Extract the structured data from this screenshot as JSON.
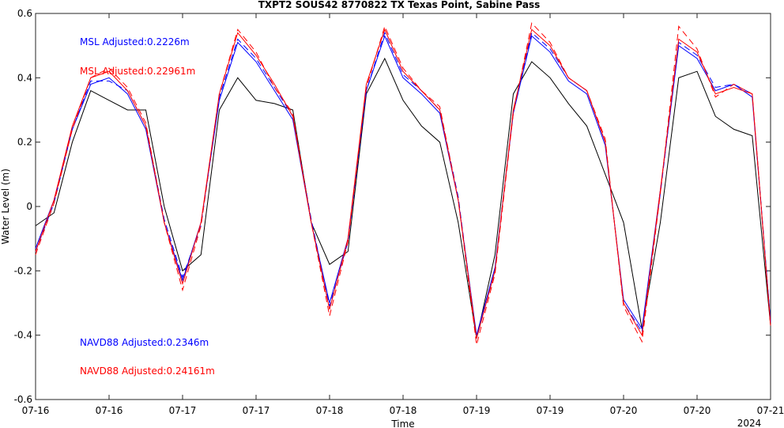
{
  "chart_data": {
    "type": "line",
    "title": "TXPT2 SOUS42 8770822 TX Texas Point, Sabine Pass",
    "xlabel": "Time",
    "ylabel": "Water Level (m)",
    "year_label": "2024",
    "annotations": [
      {
        "text": "MSL Adjusted:0.2226m",
        "color": "#0000ff"
      },
      {
        "text": "MSL Adjusted:0.22961m",
        "color": "#ff0000"
      },
      {
        "text": "NAVD88 Adjusted:0.2346m",
        "color": "#0000ff"
      },
      {
        "text": "NAVD88 Adjusted:0.24161m",
        "color": "#ff0000"
      }
    ],
    "x": [
      0,
      3,
      6,
      9,
      12,
      15,
      18,
      21,
      24,
      27,
      30,
      33,
      36,
      39,
      42,
      45,
      48,
      51,
      54,
      57,
      60,
      63,
      66,
      69,
      72,
      75,
      78,
      81,
      84,
      87,
      90,
      93,
      96,
      99,
      102,
      105,
      108,
      111,
      114,
      117,
      120
    ],
    "xlim": [
      0,
      120
    ],
    "xticks": [
      {
        "value": 0,
        "label": "07-16"
      },
      {
        "value": 12,
        "label": "07-16"
      },
      {
        "value": 24,
        "label": "07-17"
      },
      {
        "value": 36,
        "label": "07-17"
      },
      {
        "value": 48,
        "label": "07-18"
      },
      {
        "value": 60,
        "label": "07-18"
      },
      {
        "value": 72,
        "label": "07-19"
      },
      {
        "value": 84,
        "label": "07-19"
      },
      {
        "value": 96,
        "label": "07-20"
      },
      {
        "value": 108,
        "label": "07-20"
      },
      {
        "value": 120,
        "label": "07-21"
      }
    ],
    "ylim": [
      -0.6,
      0.6
    ],
    "yticks": [
      -0.6,
      -0.4,
      -0.2,
      0,
      0.2,
      0.4,
      0.6
    ],
    "series": [
      {
        "color": "#000000",
        "dashed": false,
        "values": [
          -0.06,
          -0.02,
          0.2,
          0.36,
          0.33,
          0.3,
          0.3,
          0.0,
          -0.2,
          -0.15,
          0.3,
          0.4,
          0.33,
          0.32,
          0.3,
          -0.05,
          -0.18,
          -0.14,
          0.35,
          0.46,
          0.33,
          0.25,
          0.2,
          -0.05,
          -0.41,
          -0.15,
          0.35,
          0.45,
          0.4,
          0.32,
          0.25,
          0.1,
          -0.05,
          -0.38,
          -0.05,
          0.4,
          0.42,
          0.28,
          0.24,
          0.22,
          -0.37
        ]
      },
      {
        "color": "#0000ff",
        "dashed": false,
        "values": [
          -0.13,
          0.02,
          0.24,
          0.38,
          0.4,
          0.35,
          0.24,
          -0.05,
          -0.23,
          -0.05,
          0.33,
          0.51,
          0.45,
          0.36,
          0.27,
          -0.05,
          -0.3,
          -0.1,
          0.36,
          0.53,
          0.4,
          0.35,
          0.29,
          0.02,
          -0.4,
          -0.19,
          0.29,
          0.53,
          0.48,
          0.39,
          0.35,
          0.19,
          -0.29,
          -0.38,
          0.05,
          0.5,
          0.46,
          0.36,
          0.38,
          0.34,
          -0.36
        ]
      },
      {
        "color": "#0000ff",
        "dashed": true,
        "values": [
          -0.14,
          0.01,
          0.24,
          0.39,
          0.39,
          0.36,
          0.25,
          -0.04,
          -0.22,
          -0.06,
          0.34,
          0.52,
          0.46,
          0.37,
          0.28,
          -0.04,
          -0.31,
          -0.11,
          0.36,
          0.54,
          0.41,
          0.36,
          0.3,
          0.03,
          -0.41,
          -0.2,
          0.3,
          0.54,
          0.49,
          0.4,
          0.36,
          0.2,
          -0.3,
          -0.39,
          0.04,
          0.51,
          0.47,
          0.37,
          0.38,
          0.35,
          -0.36
        ]
      },
      {
        "color": "#ff0000",
        "dashed": false,
        "values": [
          -0.14,
          0.02,
          0.25,
          0.4,
          0.42,
          0.36,
          0.25,
          -0.05,
          -0.24,
          -0.05,
          0.35,
          0.54,
          0.47,
          0.38,
          0.28,
          -0.05,
          -0.32,
          -0.1,
          0.38,
          0.55,
          0.42,
          0.36,
          0.3,
          0.02,
          -0.41,
          -0.2,
          0.3,
          0.55,
          0.5,
          0.4,
          0.36,
          0.2,
          -0.3,
          -0.4,
          0.05,
          0.52,
          0.48,
          0.35,
          0.37,
          0.35,
          -0.37
        ]
      },
      {
        "color": "#ff0000",
        "dashed": true,
        "values": [
          -0.15,
          0.01,
          0.24,
          0.4,
          0.43,
          0.37,
          0.26,
          -0.05,
          -0.26,
          -0.06,
          0.35,
          0.55,
          0.48,
          0.37,
          0.29,
          -0.05,
          -0.34,
          -0.11,
          0.37,
          0.56,
          0.43,
          0.36,
          0.31,
          0.02,
          -0.43,
          -0.21,
          0.29,
          0.57,
          0.51,
          0.4,
          0.36,
          0.21,
          -0.31,
          -0.42,
          0.04,
          0.56,
          0.49,
          0.34,
          0.38,
          0.35,
          -0.37
        ]
      }
    ]
  }
}
